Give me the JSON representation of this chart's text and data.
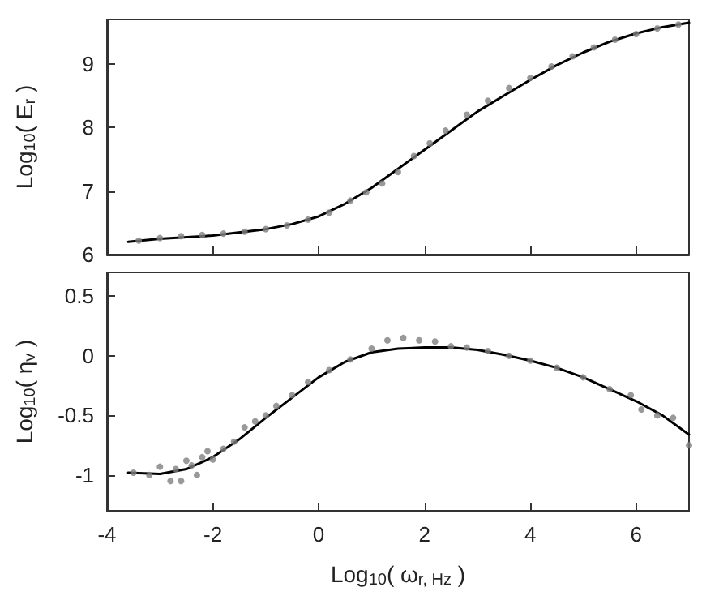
{
  "chart_data": [
    {
      "type": "line",
      "ylabel": "Log$_{10}$( E$_{r}$ )",
      "xlim": [
        -4,
        7
      ],
      "xticks": [
        -4,
        -2,
        0,
        2,
        4,
        6
      ],
      "ylim": [
        6,
        9.7
      ],
      "yticks": [
        6,
        7,
        8,
        9
      ],
      "tick_labels": "y",
      "grid": false,
      "series": [
        {
          "type": "scatter",
          "color": "#808080",
          "marker": "circle",
          "x": [
            -3.4,
            -3.0,
            -2.6,
            -2.2,
            -1.8,
            -1.4,
            -1.0,
            -0.6,
            -0.2,
            0.2,
            0.6,
            0.9,
            1.2,
            1.5,
            1.8,
            2.1,
            2.4,
            2.8,
            3.2,
            3.6,
            4.0,
            4.4,
            4.8,
            5.2,
            5.6,
            6.0,
            6.4,
            6.8
          ],
          "values": [
            6.22,
            6.26,
            6.29,
            6.31,
            6.33,
            6.36,
            6.4,
            6.46,
            6.55,
            6.66,
            6.85,
            6.98,
            7.12,
            7.3,
            7.55,
            7.75,
            7.95,
            8.2,
            8.42,
            8.62,
            8.78,
            8.96,
            9.12,
            9.26,
            9.38,
            9.47,
            9.56,
            9.62
          ]
        },
        {
          "type": "line",
          "color": "#000000",
          "marker": "none",
          "line_style": "solid",
          "x": [
            -3.6,
            -3,
            -2,
            -1,
            -0.5,
            0,
            0.5,
            1,
            1.5,
            2,
            2.5,
            3,
            3.5,
            4,
            4.5,
            5,
            5.5,
            6,
            6.5,
            7
          ],
          "values": [
            6.2,
            6.25,
            6.3,
            6.4,
            6.48,
            6.6,
            6.8,
            7.05,
            7.35,
            7.65,
            7.95,
            8.25,
            8.5,
            8.75,
            8.98,
            9.18,
            9.35,
            9.48,
            9.58,
            9.65
          ]
        }
      ]
    },
    {
      "type": "line",
      "xlabel": "Log$_{10}$( ω$_{r, Hz}$ )",
      "ylabel": "Log$_{10}$( η$_{v}$ )",
      "xlim": [
        -4,
        7
      ],
      "xticks": [
        -4,
        -2,
        0,
        2,
        4,
        6
      ],
      "ylim": [
        -1.3,
        0.7
      ],
      "yticks": [
        -1,
        -0.5,
        0,
        0.5
      ],
      "grid": false,
      "series": [
        {
          "type": "scatter",
          "color": "#808080",
          "marker": "circle",
          "x": [
            -3.5,
            -3.2,
            -3.0,
            -2.8,
            -2.7,
            -2.6,
            -2.5,
            -2.4,
            -2.3,
            -2.2,
            -2.1,
            -2.0,
            -1.8,
            -1.6,
            -1.4,
            -1.2,
            -1.0,
            -0.8,
            -0.5,
            -0.2,
            0.2,
            0.6,
            1.0,
            1.3,
            1.6,
            1.9,
            2.2,
            2.5,
            2.8,
            3.2,
            3.6,
            4.0,
            4.5,
            5.0,
            5.5,
            5.9,
            6.1,
            6.4,
            6.7,
            7.0
          ],
          "values": [
            -0.98,
            -1.0,
            -0.93,
            -1.05,
            -0.95,
            -1.05,
            -0.88,
            -0.92,
            -1.0,
            -0.85,
            -0.8,
            -0.87,
            -0.78,
            -0.72,
            -0.6,
            -0.55,
            -0.5,
            -0.42,
            -0.33,
            -0.22,
            -0.12,
            -0.03,
            0.06,
            0.13,
            0.15,
            0.13,
            0.12,
            0.08,
            0.07,
            0.04,
            0.0,
            -0.04,
            -0.1,
            -0.18,
            -0.28,
            -0.33,
            -0.45,
            -0.5,
            -0.52,
            -0.75
          ]
        },
        {
          "type": "line",
          "color": "#000000",
          "marker": "none",
          "line_style": "solid",
          "x": [
            -3.6,
            -3,
            -2.5,
            -2,
            -1.5,
            -1,
            -0.5,
            0,
            0.5,
            1,
            1.5,
            2,
            2.5,
            3,
            3.5,
            4,
            4.5,
            5,
            5.5,
            6,
            6.5,
            7
          ],
          "values": [
            -0.98,
            -0.99,
            -0.95,
            -0.85,
            -0.7,
            -0.52,
            -0.35,
            -0.18,
            -0.05,
            0.03,
            0.06,
            0.07,
            0.07,
            0.05,
            0.01,
            -0.04,
            -0.1,
            -0.18,
            -0.28,
            -0.38,
            -0.5,
            -0.66
          ]
        }
      ]
    }
  ]
}
